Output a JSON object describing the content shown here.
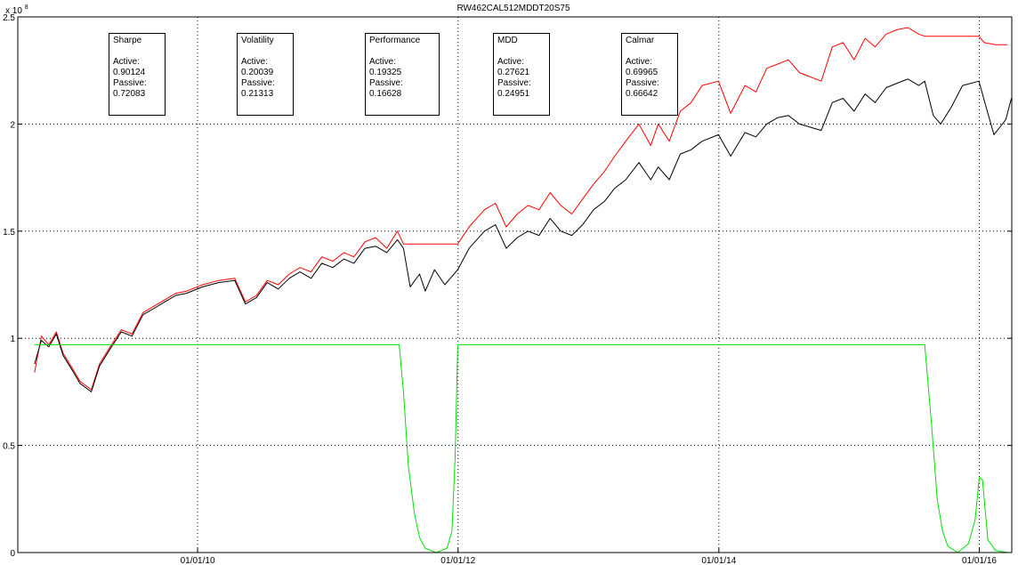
{
  "chart_data": {
    "type": "line",
    "title": "RW462CAL512MDDT20S75",
    "y_exponent_label": "x 10",
    "y_exponent": "8",
    "xlabel": "",
    "ylabel": "",
    "ylim": [
      0,
      2.5
    ],
    "x_range": [
      "2008-08-15",
      "2016-04-01"
    ],
    "yticks": [
      0,
      0.5,
      1,
      1.5,
      2,
      2.5
    ],
    "ytick_labels": [
      "0",
      "0.5",
      "1",
      "1.5",
      "2",
      "2.5"
    ],
    "xticks": [
      "2010-01-01",
      "2012-01-01",
      "2014-01-01",
      "2016-01-01"
    ],
    "xtick_labels": [
      "01/01/10",
      "01/01/12",
      "01/01/14",
      "01/01/16"
    ],
    "grid": true,
    "series": [
      {
        "color": "#ff0000",
        "x": [
          "2008-10-01",
          "2008-10-20",
          "2008-11-10",
          "2008-12-01",
          "2008-12-20",
          "2009-01-15",
          "2009-02-05",
          "2009-03-09",
          "2009-04-01",
          "2009-05-01",
          "2009-06-01",
          "2009-07-01",
          "2009-08-01",
          "2009-09-01",
          "2009-10-01",
          "2009-11-01",
          "2009-12-01",
          "2010-01-15",
          "2010-03-01",
          "2010-04-15",
          "2010-05-15",
          "2010-06-15",
          "2010-07-15",
          "2010-08-15",
          "2010-09-15",
          "2010-10-15",
          "2010-11-15",
          "2010-12-15",
          "2011-01-15",
          "2011-02-15",
          "2011-03-15",
          "2011-04-15",
          "2011-05-15",
          "2011-06-15",
          "2011-07-15",
          "2011-08-01",
          "2011-09-01",
          "2011-10-01",
          "2011-11-01",
          "2011-12-01",
          "2011-12-31",
          "2012-02-01",
          "2012-03-15",
          "2012-04-15",
          "2012-05-15",
          "2012-06-15",
          "2012-07-15",
          "2012-08-15",
          "2012-09-15",
          "2012-10-15",
          "2012-11-15",
          "2012-12-15",
          "2013-01-15",
          "2013-02-15",
          "2013-03-15",
          "2013-04-15",
          "2013-05-22",
          "2013-06-24",
          "2013-07-15",
          "2013-08-15",
          "2013-09-15",
          "2013-10-15",
          "2013-11-15",
          "2013-12-31",
          "2014-02-03",
          "2014-03-15",
          "2014-04-15",
          "2014-05-15",
          "2014-06-15",
          "2014-07-15",
          "2014-08-15",
          "2014-10-15",
          "2014-11-15",
          "2014-12-15",
          "2015-01-15",
          "2015-02-15",
          "2015-03-15",
          "2015-04-15",
          "2015-05-15",
          "2015-06-15",
          "2015-07-15",
          "2015-08-01",
          "2015-09-01",
          "2015-10-15",
          "2015-12-31",
          "2016-01-15",
          "2016-02-15",
          "2016-03-20"
        ],
        "values": [
          0.84,
          1.01,
          0.97,
          1.03,
          0.93,
          0.86,
          0.8,
          0.76,
          0.88,
          0.96,
          1.04,
          1.02,
          1.12,
          1.15,
          1.18,
          1.21,
          1.22,
          1.25,
          1.27,
          1.28,
          1.17,
          1.2,
          1.27,
          1.25,
          1.3,
          1.33,
          1.31,
          1.38,
          1.36,
          1.4,
          1.38,
          1.45,
          1.47,
          1.42,
          1.5,
          1.44,
          1.44,
          1.44,
          1.44,
          1.44,
          1.44,
          1.52,
          1.6,
          1.63,
          1.52,
          1.58,
          1.62,
          1.6,
          1.68,
          1.62,
          1.58,
          1.65,
          1.72,
          1.78,
          1.85,
          1.92,
          2.0,
          1.9,
          2.0,
          1.92,
          2.06,
          2.1,
          2.18,
          2.2,
          2.05,
          2.18,
          2.15,
          2.26,
          2.28,
          2.3,
          2.24,
          2.2,
          2.36,
          2.38,
          2.3,
          2.4,
          2.36,
          2.42,
          2.44,
          2.45,
          2.42,
          2.41,
          2.41,
          2.41,
          2.41,
          2.38,
          2.37,
          2.37
        ]
      },
      {
        "color": "#000000",
        "x": [
          "2008-10-01",
          "2008-10-20",
          "2008-11-10",
          "2008-12-01",
          "2008-12-20",
          "2009-01-15",
          "2009-02-05",
          "2009-03-09",
          "2009-04-01",
          "2009-05-01",
          "2009-06-01",
          "2009-07-01",
          "2009-08-01",
          "2009-09-01",
          "2009-10-01",
          "2009-11-01",
          "2009-12-01",
          "2010-01-15",
          "2010-03-01",
          "2010-04-15",
          "2010-05-15",
          "2010-06-15",
          "2010-07-15",
          "2010-08-15",
          "2010-09-15",
          "2010-10-15",
          "2010-11-15",
          "2010-12-15",
          "2011-01-15",
          "2011-02-15",
          "2011-03-15",
          "2011-04-15",
          "2011-05-15",
          "2011-06-15",
          "2011-07-15",
          "2011-08-01",
          "2011-08-20",
          "2011-09-15",
          "2011-10-01",
          "2011-10-27",
          "2011-11-25",
          "2011-12-31",
          "2012-02-01",
          "2012-03-15",
          "2012-04-15",
          "2012-05-15",
          "2012-06-15",
          "2012-07-15",
          "2012-08-15",
          "2012-09-15",
          "2012-10-15",
          "2012-11-15",
          "2012-12-15",
          "2013-01-15",
          "2013-02-15",
          "2013-03-15",
          "2013-04-15",
          "2013-05-22",
          "2013-06-24",
          "2013-07-15",
          "2013-08-15",
          "2013-09-15",
          "2013-10-15",
          "2013-11-15",
          "2013-12-31",
          "2014-02-03",
          "2014-03-15",
          "2014-04-15",
          "2014-05-15",
          "2014-06-15",
          "2014-07-15",
          "2014-08-15",
          "2014-10-15",
          "2014-11-15",
          "2014-12-15",
          "2015-01-15",
          "2015-02-15",
          "2015-03-15",
          "2015-04-15",
          "2015-05-15",
          "2015-06-15",
          "2015-07-15",
          "2015-08-01",
          "2015-08-25",
          "2015-09-15",
          "2015-10-15",
          "2015-11-15",
          "2015-12-31",
          "2016-01-20",
          "2016-02-11",
          "2016-03-15",
          "2016-03-31"
        ],
        "values": [
          0.88,
          0.99,
          0.96,
          1.02,
          0.92,
          0.85,
          0.79,
          0.75,
          0.87,
          0.95,
          1.03,
          1.01,
          1.11,
          1.14,
          1.17,
          1.2,
          1.21,
          1.24,
          1.26,
          1.27,
          1.16,
          1.19,
          1.26,
          1.23,
          1.28,
          1.31,
          1.28,
          1.35,
          1.33,
          1.37,
          1.35,
          1.42,
          1.43,
          1.4,
          1.46,
          1.42,
          1.24,
          1.3,
          1.22,
          1.32,
          1.25,
          1.32,
          1.42,
          1.5,
          1.53,
          1.42,
          1.47,
          1.5,
          1.48,
          1.56,
          1.5,
          1.48,
          1.53,
          1.6,
          1.64,
          1.7,
          1.74,
          1.82,
          1.74,
          1.8,
          1.74,
          1.86,
          1.88,
          1.92,
          1.95,
          1.85,
          1.96,
          1.94,
          2.0,
          2.03,
          2.04,
          2.0,
          1.97,
          2.1,
          2.12,
          2.06,
          2.14,
          2.1,
          2.17,
          2.19,
          2.21,
          2.18,
          2.2,
          2.04,
          2.0,
          2.08,
          2.18,
          2.2,
          2.08,
          1.95,
          2.02,
          2.12
        ]
      },
      {
        "color": "#00e000",
        "x": [
          "2008-10-01",
          "2009-01-01",
          "2010-01-01",
          "2011-01-01",
          "2011-07-01",
          "2011-07-20",
          "2011-08-01",
          "2011-08-15",
          "2011-09-01",
          "2011-09-15",
          "2011-10-01",
          "2011-11-01",
          "2011-12-01",
          "2011-12-15",
          "2011-12-24",
          "2011-12-31",
          "2012-06-01",
          "2013-06-01",
          "2014-06-01",
          "2015-07-15",
          "2015-08-01",
          "2015-08-20",
          "2015-09-05",
          "2015-09-20",
          "2015-10-05",
          "2015-11-01",
          "2015-12-01",
          "2015-12-20",
          "2016-01-01",
          "2016-01-10",
          "2016-01-25",
          "2016-02-15",
          "2016-03-20"
        ],
        "values": [
          0.97,
          0.97,
          0.97,
          0.97,
          0.97,
          0.97,
          0.75,
          0.4,
          0.18,
          0.07,
          0.02,
          0.0,
          0.02,
          0.1,
          0.45,
          0.97,
          0.97,
          0.97,
          0.97,
          0.97,
          0.97,
          0.6,
          0.25,
          0.1,
          0.03,
          0.0,
          0.04,
          0.15,
          0.35,
          0.34,
          0.06,
          0.01,
          0.0
        ]
      }
    ],
    "annotations": [
      {
        "title": "Sharpe",
        "active_label": "Active:",
        "active": "0.90124",
        "passive_label": "Passive:",
        "passive": "0.72083"
      },
      {
        "title": "Volatility",
        "active_label": "Active:",
        "active": "0.20039",
        "passive_label": "Passive:",
        "passive": "0.21313"
      },
      {
        "title": "Performance",
        "active_label": "Active:",
        "active": "0.19325",
        "passive_label": "Passive:",
        "passive": "0.16628"
      },
      {
        "title": "MDD",
        "active_label": "Active:",
        "active": "0.27621",
        "passive_label": "Passive:",
        "passive": "0.24951"
      },
      {
        "title": "Calmar",
        "active_label": "Active:",
        "active": "0.69965",
        "passive_label": "Passive:",
        "passive": "0.66642"
      }
    ]
  }
}
